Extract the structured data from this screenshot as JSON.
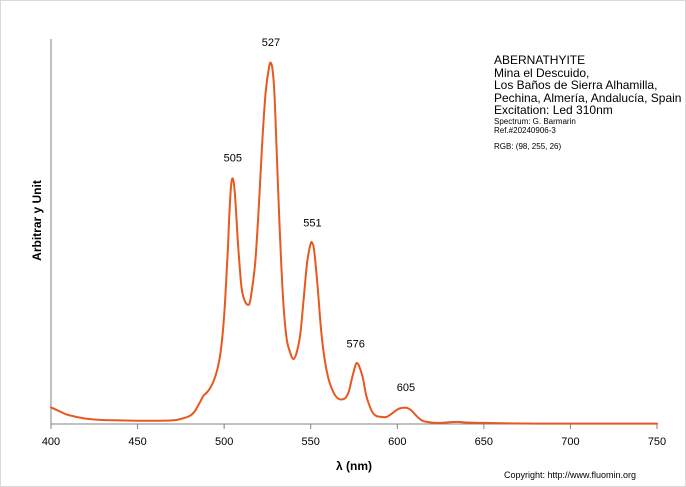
{
  "chart_data": {
    "type": "line",
    "xlabel": "λ (nm)",
    "ylabel": "Arbitrar y Unit",
    "xlim": [
      400,
      750
    ],
    "ylim": [
      0,
      1.0
    ],
    "x_ticks": [
      "400",
      "450",
      "500",
      "550",
      "600",
      "650",
      "700",
      "750"
    ],
    "grid": false,
    "line_color": "#e8581f",
    "peak_labels": [
      {
        "x": 505,
        "text": "505"
      },
      {
        "x": 527,
        "text": "527"
      },
      {
        "x": 551,
        "text": "551"
      },
      {
        "x": 576,
        "text": "576"
      },
      {
        "x": 605,
        "text": "605"
      }
    ],
    "series": [
      {
        "x": [
          400,
          405,
          410,
          420,
          430,
          440,
          450,
          460,
          470,
          475,
          480,
          483,
          486,
          488,
          490,
          492,
          494,
          496,
          498,
          500,
          502,
          503,
          504,
          505,
          506,
          507,
          508,
          510,
          512,
          514,
          515,
          516,
          518,
          520,
          522,
          524,
          526,
          527,
          528,
          529,
          530,
          532,
          534,
          536,
          538,
          540,
          542,
          544,
          546,
          548,
          550,
          551,
          552,
          554,
          556,
          558,
          560,
          562,
          564,
          566,
          568,
          570,
          572,
          574,
          576,
          577,
          578,
          580,
          582,
          584,
          586,
          588,
          590,
          592,
          594,
          596,
          598,
          600,
          602,
          604,
          605,
          606,
          608,
          610,
          612,
          615,
          620,
          625,
          630,
          635,
          640,
          650,
          660,
          680,
          700,
          720,
          740,
          750
        ],
        "values": [
          0.046,
          0.035,
          0.025,
          0.015,
          0.011,
          0.01,
          0.009,
          0.009,
          0.01,
          0.014,
          0.022,
          0.035,
          0.06,
          0.078,
          0.087,
          0.1,
          0.12,
          0.15,
          0.2,
          0.3,
          0.47,
          0.58,
          0.66,
          0.68,
          0.65,
          0.58,
          0.5,
          0.38,
          0.34,
          0.33,
          0.34,
          0.37,
          0.45,
          0.6,
          0.78,
          0.92,
          0.99,
          1.0,
          0.98,
          0.92,
          0.8,
          0.55,
          0.35,
          0.24,
          0.2,
          0.18,
          0.2,
          0.25,
          0.35,
          0.45,
          0.5,
          0.5,
          0.48,
          0.38,
          0.26,
          0.18,
          0.13,
          0.1,
          0.08,
          0.07,
          0.068,
          0.072,
          0.09,
          0.13,
          0.165,
          0.168,
          0.16,
          0.13,
          0.08,
          0.05,
          0.03,
          0.022,
          0.02,
          0.019,
          0.02,
          0.026,
          0.033,
          0.04,
          0.044,
          0.045,
          0.045,
          0.044,
          0.038,
          0.028,
          0.018,
          0.008,
          0.004,
          0.003,
          0.005,
          0.006,
          0.004,
          0.003,
          0.002,
          0.001,
          0.001,
          0.001,
          0.001,
          0.001
        ]
      }
    ]
  },
  "info": {
    "mineral": "ABERNATHYITE",
    "locality_line1": "Mina el Descuido,",
    "locality_line2": "Los Baños de Sierra Alhamilla,",
    "locality_line3": "Pechina, Almería, Andalucía, Spain",
    "excitation": "Excitation: Led 310nm",
    "spectrum_credit": "Spectrum: G. Barmarin",
    "reference": "Ref.#20240906-3",
    "rgb": "RGB: (98, 255, 26)"
  },
  "copyright": "Copyright: http://www.fluomin.org"
}
